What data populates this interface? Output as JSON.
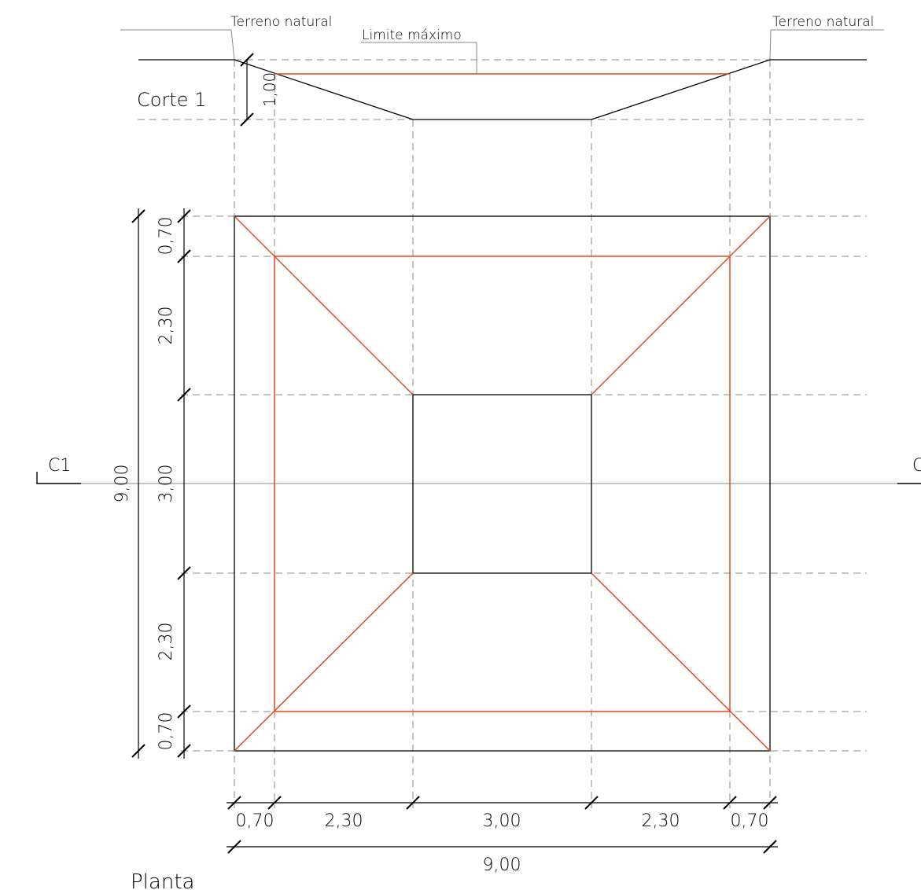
{
  "labels": {
    "terreno_left": "Terreno natural",
    "terreno_right": "Terreno natural",
    "limite": "Limite máximo",
    "corte": "Corte 1",
    "section_mark_left": "C1",
    "section_mark_right": "C",
    "planta": "Planta"
  },
  "dimensions": {
    "section_depth": "1,00",
    "vertical_inner": [
      "0,70",
      "2,30",
      "3,00",
      "2,30",
      "0,70"
    ],
    "vertical_total": "9,00",
    "horizontal_inner": [
      "0,70",
      "2,30",
      "3,00",
      "2,30",
      "0,70"
    ],
    "horizontal_total": "9,00"
  },
  "colors": {
    "black": "#000000",
    "orange": "#e8461e",
    "grey": "#8a8a8a"
  }
}
